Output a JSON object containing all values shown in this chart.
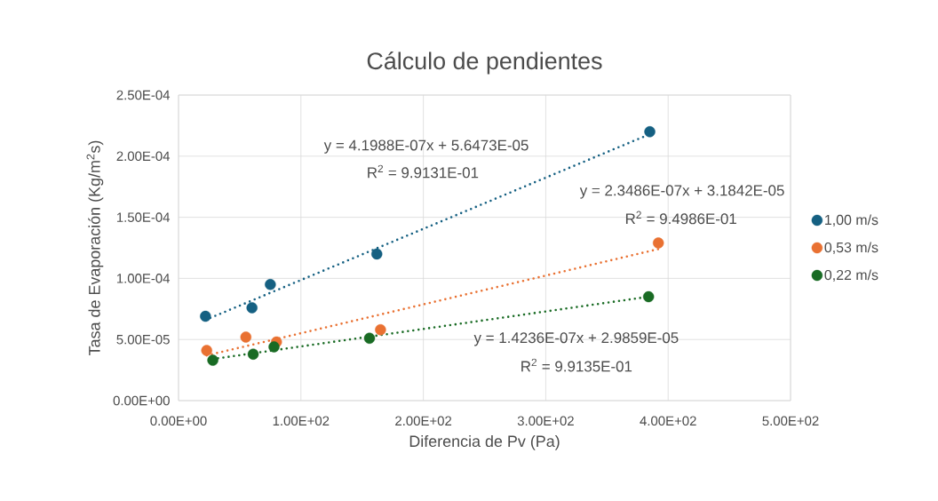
{
  "chart_data": {
    "type": "scatter",
    "title": "Cálculo de pendientes",
    "xlabel": "Diferencia de Pv (Pa)",
    "ylabel": "Tasa de Evaporación (Kg/m$^{2}$s)",
    "xlim": [
      0,
      500
    ],
    "ylim": [
      0,
      0.00025
    ],
    "xticks": [
      {
        "value": 0,
        "label": "0.00E+00"
      },
      {
        "value": 100,
        "label": "1.00E+02"
      },
      {
        "value": 200,
        "label": "2.00E+02"
      },
      {
        "value": 300,
        "label": "3.00E+02"
      },
      {
        "value": 400,
        "label": "4.00E+02"
      },
      {
        "value": 500,
        "label": "5.00E+02"
      }
    ],
    "yticks": [
      {
        "value": 0,
        "label": "0.00E+00"
      },
      {
        "value": 5e-05,
        "label": "5.00E-05"
      },
      {
        "value": 0.0001,
        "label": "1.00E-04"
      },
      {
        "value": 0.00015,
        "label": "1.50E-04"
      },
      {
        "value": 0.0002,
        "label": "2.00E-04"
      },
      {
        "value": 0.00025,
        "label": "2.50E-04"
      }
    ],
    "grid": true,
    "legend": "right",
    "marker": "circle",
    "series": [
      {
        "name": "1,00 m/s",
        "color": "#156082",
        "x": [
          22,
          60,
          75,
          162,
          385
        ],
        "values": [
          6.9e-05,
          7.6e-05,
          9.5e-05,
          0.00012,
          0.00022
        ]
      },
      {
        "name": "0,53 m/s",
        "color": "#e97132",
        "x": [
          23,
          55,
          80,
          165,
          392
        ],
        "values": [
          4.1e-05,
          5.2e-05,
          4.8e-05,
          5.8e-05,
          0.000129
        ]
      },
      {
        "name": "0,22 m/s",
        "color": "#196b24",
        "x": [
          28,
          61,
          78,
          156,
          384
        ],
        "values": [
          3.3e-05,
          3.8e-05,
          4.4e-05,
          5.1e-05,
          8.5e-05
        ]
      },
      {
        "type": "line",
        "color": "#156082",
        "line_style": "dotted",
        "marker": "none",
        "x": [
          22,
          385
        ],
        "values": [
          6.6e-05,
          0.000218
        ]
      },
      {
        "type": "line",
        "color": "#e97132",
        "line_style": "dotted",
        "marker": "none",
        "x": [
          23,
          392
        ],
        "values": [
          3.7e-05,
          0.000124
        ]
      },
      {
        "type": "line",
        "color": "#196b24",
        "line_style": "dotted",
        "marker": "none",
        "x": [
          28,
          384
        ],
        "values": [
          3.4e-05,
          8.5e-05
        ]
      }
    ],
    "annotations": [
      "y = 4.1988E-07x + 5.6473E-05",
      "R$^{2}$ = 9.9131E-01",
      "y = 2.3486E-07x + 3.1842E-05",
      "R$^{2}$ = 9.4986E-01",
      "y = 1.4236E-07x + 2.9859E-05",
      "R$^{2}$ = 9.9135E-01"
    ]
  }
}
